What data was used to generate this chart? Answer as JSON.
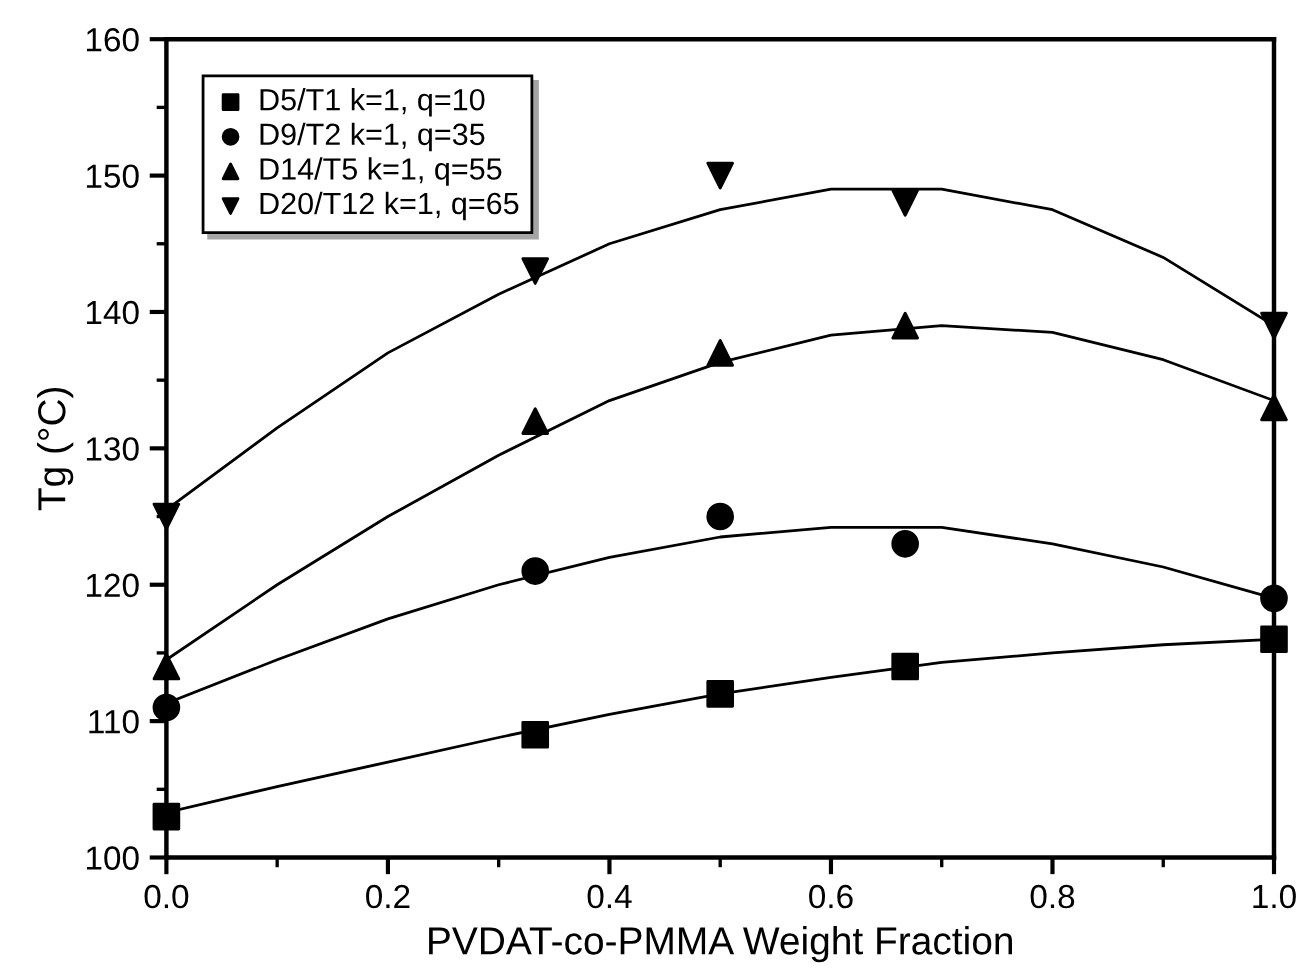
{
  "chart_data": {
    "type": "scatter",
    "xlabel": "PVDAT-co-PMMA Weight Fraction",
    "ylabel": "Tg (°C)",
    "xlim": [
      0,
      1
    ],
    "xticks": [
      {
        "value": 0,
        "label": "0.0"
      },
      0.2,
      0.4,
      0.6,
      0.8,
      {
        "value": 1,
        "label": "1.0"
      }
    ],
    "ylim": [
      100,
      160
    ],
    "yticks": [
      100,
      110,
      120,
      130,
      140,
      150,
      160
    ],
    "grid": false,
    "legend": "top left",
    "series": [
      {
        "name": "D5/T1 k=1, q=10",
        "color": "#000000",
        "marker": "square",
        "x": [
          0,
          0.333,
          0.5,
          0.667,
          1
        ],
        "values": [
          103,
          109,
          112,
          114,
          116
        ]
      },
      {
        "name": "D9/T2 k=1, q=35",
        "color": "#000000",
        "marker": "circle",
        "x": [
          0,
          0.333,
          0.5,
          0.667,
          1
        ],
        "values": [
          111,
          121,
          125,
          123,
          119
        ]
      },
      {
        "name": "D14/T5 k=1, q=55",
        "color": "#000000",
        "marker": "triangle",
        "x": [
          0,
          0.333,
          0.5,
          0.667,
          1
        ],
        "values": [
          114,
          132,
          137,
          139,
          133
        ]
      },
      {
        "name": "D20/T12 k=1, q=65",
        "color": "#000000",
        "marker": "triangle_down",
        "x": [
          0,
          0.333,
          0.5,
          0.667,
          1
        ],
        "values": [
          125,
          143,
          150,
          148,
          139
        ]
      },
      {
        "type": "line",
        "color": "#000000",
        "x": [
          0,
          0.1,
          0.2,
          0.3,
          0.4,
          0.5,
          0.6,
          0.7,
          0.8,
          0.9,
          1
        ],
        "values": [
          103.3,
          105.2,
          107,
          108.8,
          110.5,
          112,
          113.2,
          114.3,
          115,
          115.6,
          116
        ]
      },
      {
        "type": "line",
        "color": "#000000",
        "x": [
          0,
          0.1,
          0.2,
          0.3,
          0.4,
          0.5,
          0.6,
          0.7,
          0.8,
          0.9,
          1
        ],
        "values": [
          111.3,
          114.5,
          117.5,
          120,
          122,
          123.5,
          124.2,
          124.2,
          123,
          121.3,
          119
        ]
      },
      {
        "type": "line",
        "color": "#000000",
        "x": [
          0,
          0.1,
          0.2,
          0.3,
          0.4,
          0.5,
          0.6,
          0.7,
          0.8,
          0.9,
          1
        ],
        "values": [
          114.5,
          120,
          125,
          129.5,
          133.5,
          136.3,
          138.3,
          139,
          138.5,
          136.5,
          133.5
        ]
      },
      {
        "type": "line",
        "color": "#000000",
        "x": [
          0,
          0.1,
          0.2,
          0.3,
          0.4,
          0.5,
          0.6,
          0.7,
          0.8,
          0.9,
          1
        ],
        "values": [
          125.5,
          131.5,
          137,
          141.3,
          145,
          147.5,
          149,
          149,
          147.5,
          144,
          139
        ]
      }
    ]
  }
}
